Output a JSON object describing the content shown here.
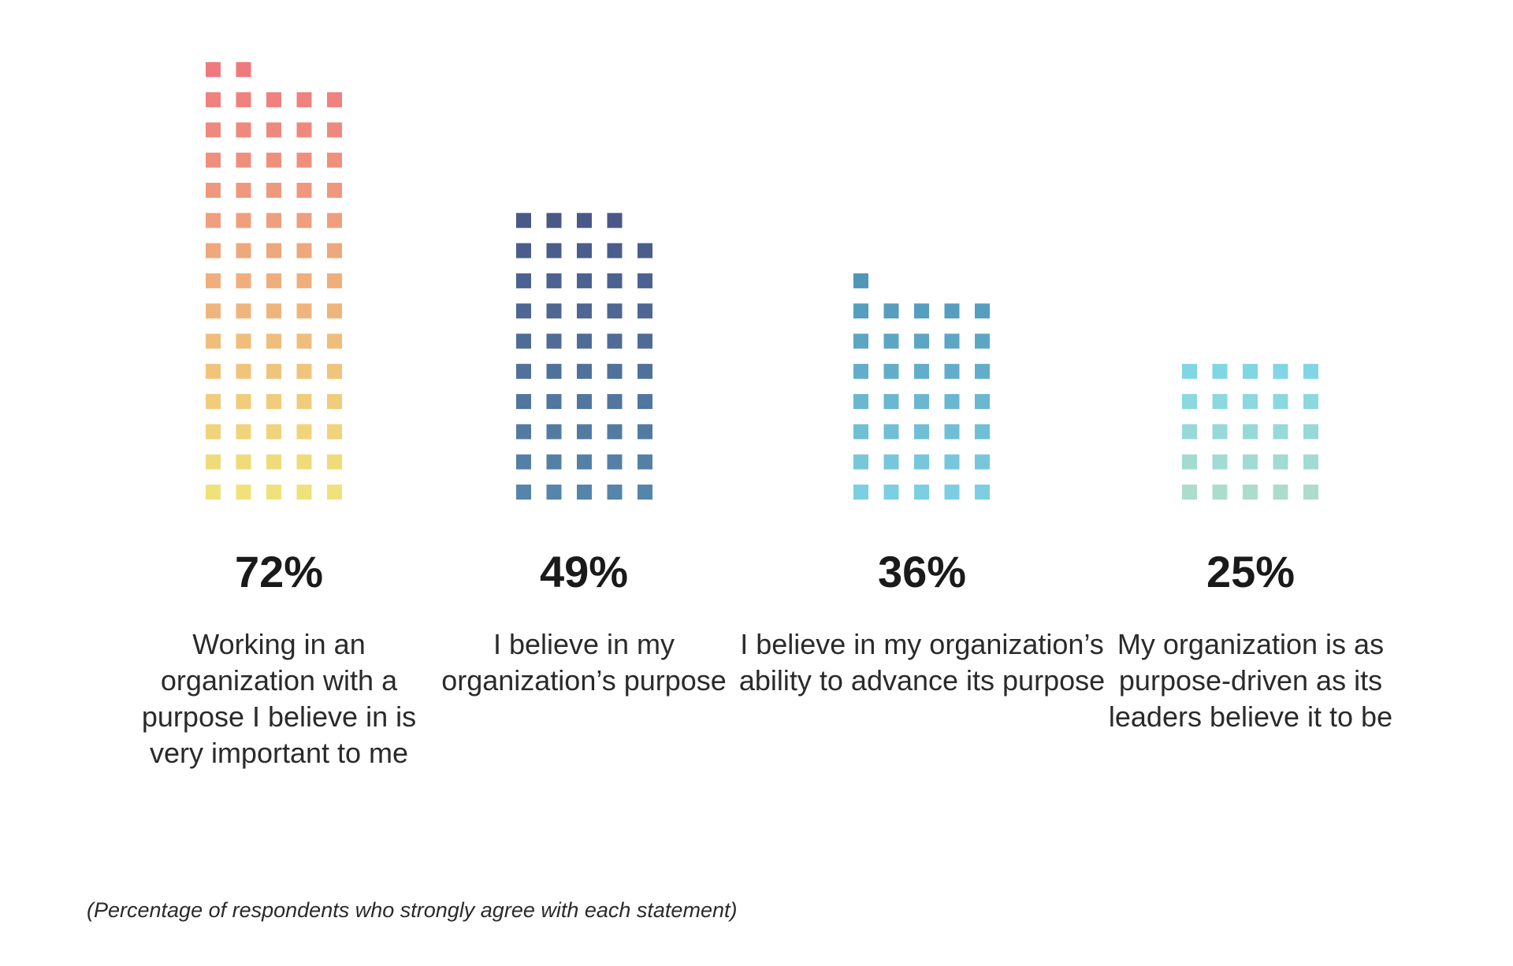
{
  "chart_data": {
    "type": "bar",
    "style": "pictogram grid (5 squares per row, each square = 1%)",
    "categories": [
      [
        "Working in an",
        "organization with a",
        "purpose I believe in is",
        "very important to me"
      ],
      [
        "I believe in my",
        "organization’s purpose"
      ],
      [
        "I believe in my organization’s",
        "ability to advance its purpose"
      ],
      [
        "My organization is as",
        "purpose-driven as its",
        "leaders believe it to be"
      ]
    ],
    "values": [
      72,
      49,
      36,
      25
    ],
    "value_labels": [
      "72%",
      "49%",
      "36%",
      "25%"
    ],
    "note": "(Percentage of respondents who strongly agree with each statement)",
    "gradients": [
      {
        "top": "#ef7a7e",
        "bottom": "#f0e27a"
      },
      {
        "top": "#4a5888",
        "bottom": "#5585aa"
      },
      {
        "top": "#4f96b8",
        "bottom": "#7ccfe2"
      },
      {
        "top": "#80d6e4",
        "bottom": "#acdccc"
      }
    ],
    "grid": false,
    "legend": "none"
  }
}
